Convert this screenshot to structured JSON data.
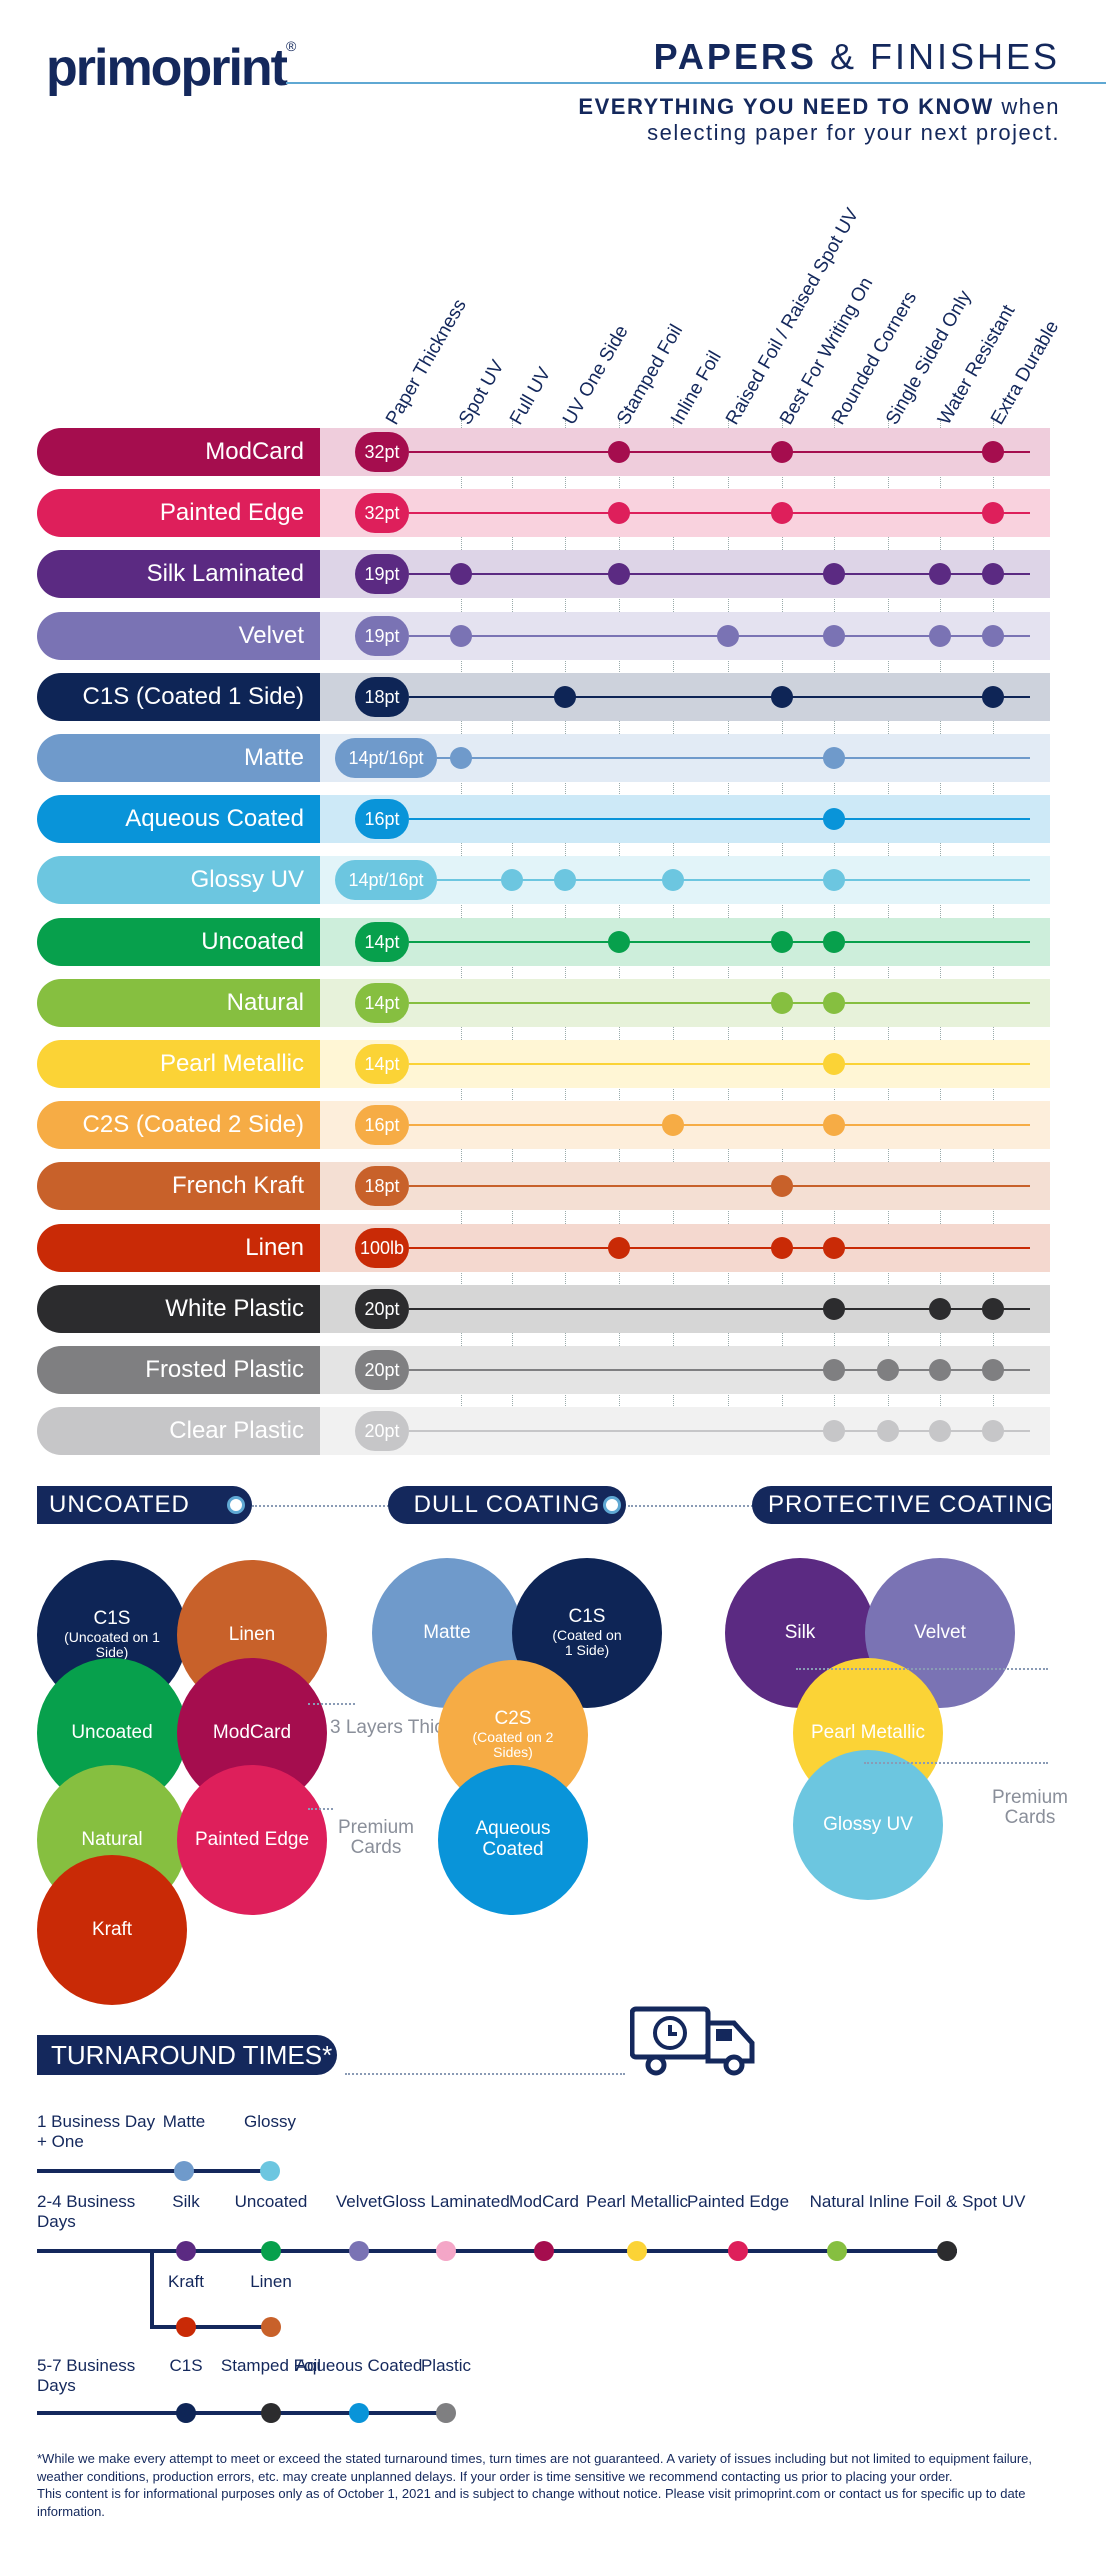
{
  "header": {
    "logo": "primoprint",
    "logo_mark": "®",
    "title_bold": "PAPERS",
    "title_rest": "& FINISHES",
    "subtitle_bold": "EVERYTHING YOU NEED TO KNOW",
    "subtitle_rest": "when",
    "subtitle_line2": "selecting paper for your next project."
  },
  "columns": [
    "Paper Thickness",
    "Spot UV",
    "Full UV",
    "UV One Side",
    "Stamped Foil",
    "Inline Foil",
    "Raised Foil / Raised Spot UV",
    "Best For Writing On",
    "Rounded Corners",
    "Single Sided Only",
    "Water Resistant",
    "Extra Durable"
  ],
  "papers": [
    {
      "name": "ModCard",
      "thickness": "32pt",
      "color": "#a50d4e",
      "band": "#efcddc",
      "features": [
        4,
        7,
        11
      ]
    },
    {
      "name": "Painted Edge",
      "thickness": "32pt",
      "color": "#de1f5b",
      "band": "#f9d2de",
      "features": [
        4,
        7,
        11
      ]
    },
    {
      "name": "Silk Laminated",
      "thickness": "19pt",
      "color": "#5b2a82",
      "band": "#ddd4e7",
      "features": [
        1,
        4,
        8,
        10,
        11
      ]
    },
    {
      "name": "Velvet",
      "thickness": "19pt",
      "color": "#7a73b4",
      "band": "#e4e2f0",
      "features": [
        1,
        6,
        8,
        10,
        11
      ]
    },
    {
      "name": "C1S (Coated 1 Side)",
      "thickness": "18pt",
      "color": "#0e2556",
      "band": "#cdd2dc",
      "features": [
        3,
        7,
        11
      ]
    },
    {
      "name": "Matte",
      "thickness": "14pt/16pt",
      "color": "#6f9acb",
      "band": "#e2ebf5",
      "features": [
        1,
        8
      ]
    },
    {
      "name": "Aqueous Coated",
      "thickness": "16pt",
      "color": "#0994d9",
      "band": "#cde9f7",
      "features": [
        8
      ]
    },
    {
      "name": "Glossy UV",
      "thickness": "14pt/16pt",
      "color": "#6cc6e0",
      "band": "#e2f4f9",
      "features": [
        2,
        3,
        5,
        8
      ]
    },
    {
      "name": "Uncoated",
      "thickness": "14pt",
      "color": "#07a04c",
      "band": "#cdeedb",
      "features": [
        4,
        7,
        8
      ]
    },
    {
      "name": "Natural",
      "thickness": "14pt",
      "color": "#86bf40",
      "band": "#e7f2da",
      "features": [
        7,
        8
      ]
    },
    {
      "name": "Pearl Metallic",
      "thickness": "14pt",
      "color": "#fbd336",
      "band": "#fff6d5",
      "features": [
        8
      ]
    },
    {
      "name": "C2S (Coated 2 Side)",
      "thickness": "16pt",
      "color": "#f6ac45",
      "band": "#fdeedb",
      "features": [
        5,
        8
      ]
    },
    {
      "name": "French Kraft",
      "thickness": "18pt",
      "color": "#c8612a",
      "band": "#f4dfd3",
      "features": [
        7
      ]
    },
    {
      "name": "Linen",
      "thickness": "100lb",
      "color": "#c92a06",
      "band": "#f4d8cf",
      "features": [
        4,
        7,
        8
      ]
    },
    {
      "name": "White Plastic",
      "thickness": "20pt",
      "color": "#2c2c2e",
      "band": "#d6d6d6",
      "features": [
        8,
        10,
        11
      ]
    },
    {
      "name": "Frosted Plastic",
      "thickness": "20pt",
      "color": "#7f7f81",
      "band": "#e4e4e4",
      "features": [
        8,
        9,
        10,
        11
      ]
    },
    {
      "name": "Clear Plastic",
      "thickness": "20pt",
      "color": "#c6c6c8",
      "band": "#f1f1f1",
      "features": [
        8,
        9,
        10,
        11
      ]
    }
  ],
  "coatings": {
    "uncoated_label": "UNCOATED",
    "dull_label": "DULL COATING",
    "protective_label": "PROTECTIVE COATING",
    "c1s_uncoated": "C1S",
    "c1s_uncoated_sub": "(Uncoated on 1 Side)",
    "linen": "Linen",
    "uncoated": "Uncoated",
    "modcard": "ModCard",
    "natural": "Natural",
    "painted_edge": "Painted Edge",
    "kraft": "Kraft",
    "layers_note": "3 Layers Thick",
    "premium_note": "Premium Cards",
    "matte": "Matte",
    "c1s_coated": "C1S",
    "c1s_coated_sub": "(Coated on 1 Side)",
    "c2s": "C2S",
    "c2s_sub": "(Coated on 2 Sides)",
    "aqueous": "Aqueous Coated",
    "silk": "Silk",
    "velvet": "Velvet",
    "pearl": "Pearl Metallic",
    "glossy": "Glossy UV",
    "premium_note2": "Premium Cards"
  },
  "turnaround": {
    "title": "TURNAROUND TIMES*",
    "row1_label": "1 Business Day + One",
    "row1": [
      "Matte",
      "Glossy"
    ],
    "row2_label": "2-4 Business Days",
    "row2": [
      "Silk",
      "Uncoated",
      "Velvet",
      "Gloss Laminated",
      "ModCard",
      "Pearl Metallic",
      "Painted Edge",
      "Natural",
      "Inline Foil & Spot UV"
    ],
    "row2b": [
      "Kraft",
      "Linen"
    ],
    "row3_label": "5-7 Business Days",
    "row3": [
      "C1S",
      "Stamped Foil",
      "Aqueous Coated",
      "Plastic"
    ]
  },
  "footer": {
    "line1": "*While we make every attempt to meet or exceed the stated turnaround times, turn times are not guaranteed. A variety of issues including but not limited to equipment failure, weather conditions, production errors, etc. may create unplanned delays. If your order is time sensitive we recommend contacting us prior to placing your order.",
    "line2": "This content is for informational purposes only as of October 1, 2021 and is subject to change without notice. Please visit primoprint.com or contact us for specific up to date information."
  }
}
